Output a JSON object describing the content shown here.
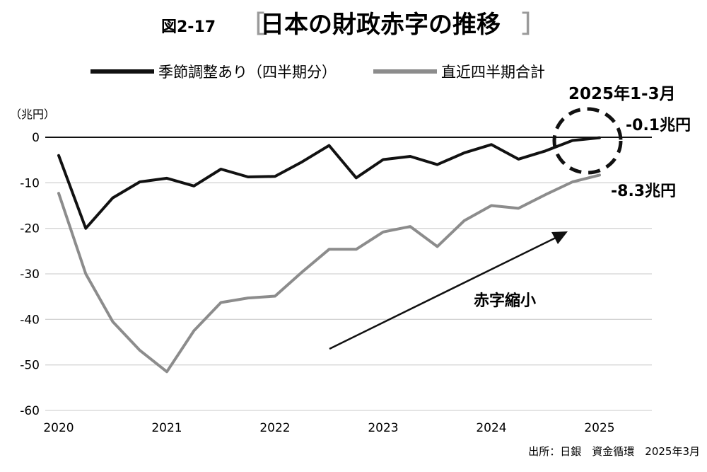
{
  "header": {
    "fig_number": "図2-17",
    "title": "日本の財政赤字の推移"
  },
  "legend": {
    "items": [
      {
        "label": "季節調整あり（四半期分）",
        "color": "#111111"
      },
      {
        "label": "直近四半期合計",
        "color": "#8c8c8c"
      }
    ]
  },
  "chart_data": {
    "type": "line",
    "unit_label": "（兆円）",
    "ylim": [
      -60,
      0
    ],
    "y_ticks": [
      "0",
      "-10",
      "-20",
      "-30",
      "-40",
      "-50",
      "-60"
    ],
    "y_tick_values": [
      0,
      -10,
      -20,
      -30,
      -40,
      -50,
      -60
    ],
    "x_tick_labels": [
      "2020",
      "2021",
      "2022",
      "2023",
      "2024",
      "2025"
    ],
    "x_tick_years": [
      2020,
      2021,
      2022,
      2023,
      2024,
      2025
    ],
    "x": [
      2020.0,
      2020.25,
      2020.5,
      2020.75,
      2021.0,
      2021.25,
      2021.5,
      2021.75,
      2022.0,
      2022.25,
      2022.5,
      2022.75,
      2023.0,
      2023.25,
      2023.5,
      2023.75,
      2024.0,
      2024.25,
      2024.5,
      2024.75,
      2025.0
    ],
    "series": [
      {
        "name": "季節調整あり（四半期分）",
        "color": "#111111",
        "values": [
          -4,
          -20,
          -13.3,
          -9.8,
          -9.0,
          -10.7,
          -7.0,
          -8.7,
          -8.6,
          -5.4,
          -1.8,
          -8.9,
          -4.9,
          -4.2,
          -6.0,
          -3.4,
          -1.6,
          -4.8,
          -3.0,
          -0.7,
          -0.1
        ]
      },
      {
        "name": "直近四半期合計",
        "color": "#8c8c8c",
        "values": [
          -12.3,
          -30,
          -40.5,
          -46.8,
          -51.5,
          -42.5,
          -36.3,
          -35.3,
          -34.9,
          -29.6,
          -24.6,
          -24.6,
          -20.8,
          -19.6,
          -24.0,
          -18.3,
          -15.0,
          -15.6,
          -12.6,
          -9.8,
          -8.3
        ]
      }
    ],
    "annotations": {
      "period_label": "2025年1-3月",
      "last_black_label": "-0.1兆円",
      "last_gray_label": "-8.3兆円",
      "trend_label": "赤字縮小"
    },
    "grid": true
  },
  "source": "出所：日銀　資金循環　2025年3月"
}
